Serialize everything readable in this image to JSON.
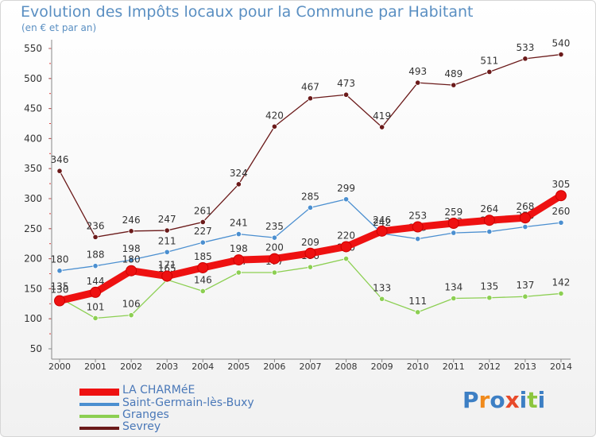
{
  "chart_data": {
    "type": "line",
    "title": "Evolution des Impôts locaux pour la Commune par Habitant",
    "subtitle": "(en € et par an)",
    "x": [
      "2000",
      "2001",
      "2002",
      "2003",
      "2004",
      "2005",
      "2006",
      "2007",
      "2008",
      "2009",
      "2010",
      "2011",
      "2012",
      "2013",
      "2014"
    ],
    "yticks": [
      50,
      100,
      150,
      200,
      250,
      300,
      350,
      400,
      450,
      500,
      550
    ],
    "ylim": [
      50,
      560
    ],
    "grid": false,
    "legend_position": "bottom-left",
    "series": [
      {
        "name": "Sevrey",
        "color": "#6b1a1a",
        "values": [
          346,
          236,
          246,
          247,
          261,
          324,
          420,
          467,
          473,
          419,
          493,
          489,
          511,
          533,
          540
        ],
        "labels": [
          "346",
          "236",
          "246",
          "247",
          "261",
          "324",
          "420",
          "467",
          "473",
          "419",
          "493",
          "489",
          "511",
          "533",
          "540"
        ]
      },
      {
        "name": "Saint-Germain-lès-Buxy",
        "color": "#4b8fd0",
        "values": [
          180,
          188,
          198,
          211,
          227,
          241,
          235,
          285,
          299,
          242,
          233,
          243,
          245,
          253,
          260
        ],
        "labels": [
          "180",
          "188",
          "198",
          "211",
          "227",
          "241",
          "235",
          "285",
          "299",
          "242",
          "233",
          "243",
          "245",
          "253",
          "260"
        ]
      },
      {
        "name": "Granges",
        "color": "#8ccf52",
        "values": [
          135,
          101,
          106,
          165,
          146,
          177,
          177,
          186,
          200,
          133,
          111,
          134,
          135,
          137,
          142
        ],
        "labels": [
          "135",
          "101",
          "106",
          "165",
          "146",
          "177",
          "177",
          "186",
          "200",
          "133",
          "111",
          "134",
          "135",
          "137",
          "142"
        ]
      },
      {
        "name": "LA CHARMéE",
        "color": "#ee1111",
        "values": [
          130,
          144,
          180,
          171,
          185,
          198,
          200,
          209,
          220,
          246,
          253,
          259,
          264,
          268,
          305
        ],
        "labels": [
          "130",
          "144",
          "180",
          "171",
          "185",
          "198",
          "200",
          "209",
          "220",
          "246",
          "253",
          "259",
          "264",
          "268",
          "305"
        ]
      }
    ]
  },
  "legend": [
    {
      "label": "LA CHARMéE",
      "color": "#ee1111"
    },
    {
      "label": "Saint-Germain-lès-Buxy",
      "color": "#4b8fd0"
    },
    {
      "label": "Granges",
      "color": "#8ccf52"
    },
    {
      "label": "Sevrey",
      "color": "#6b1a1a"
    }
  ],
  "logo": {
    "text": "Proxiti"
  }
}
